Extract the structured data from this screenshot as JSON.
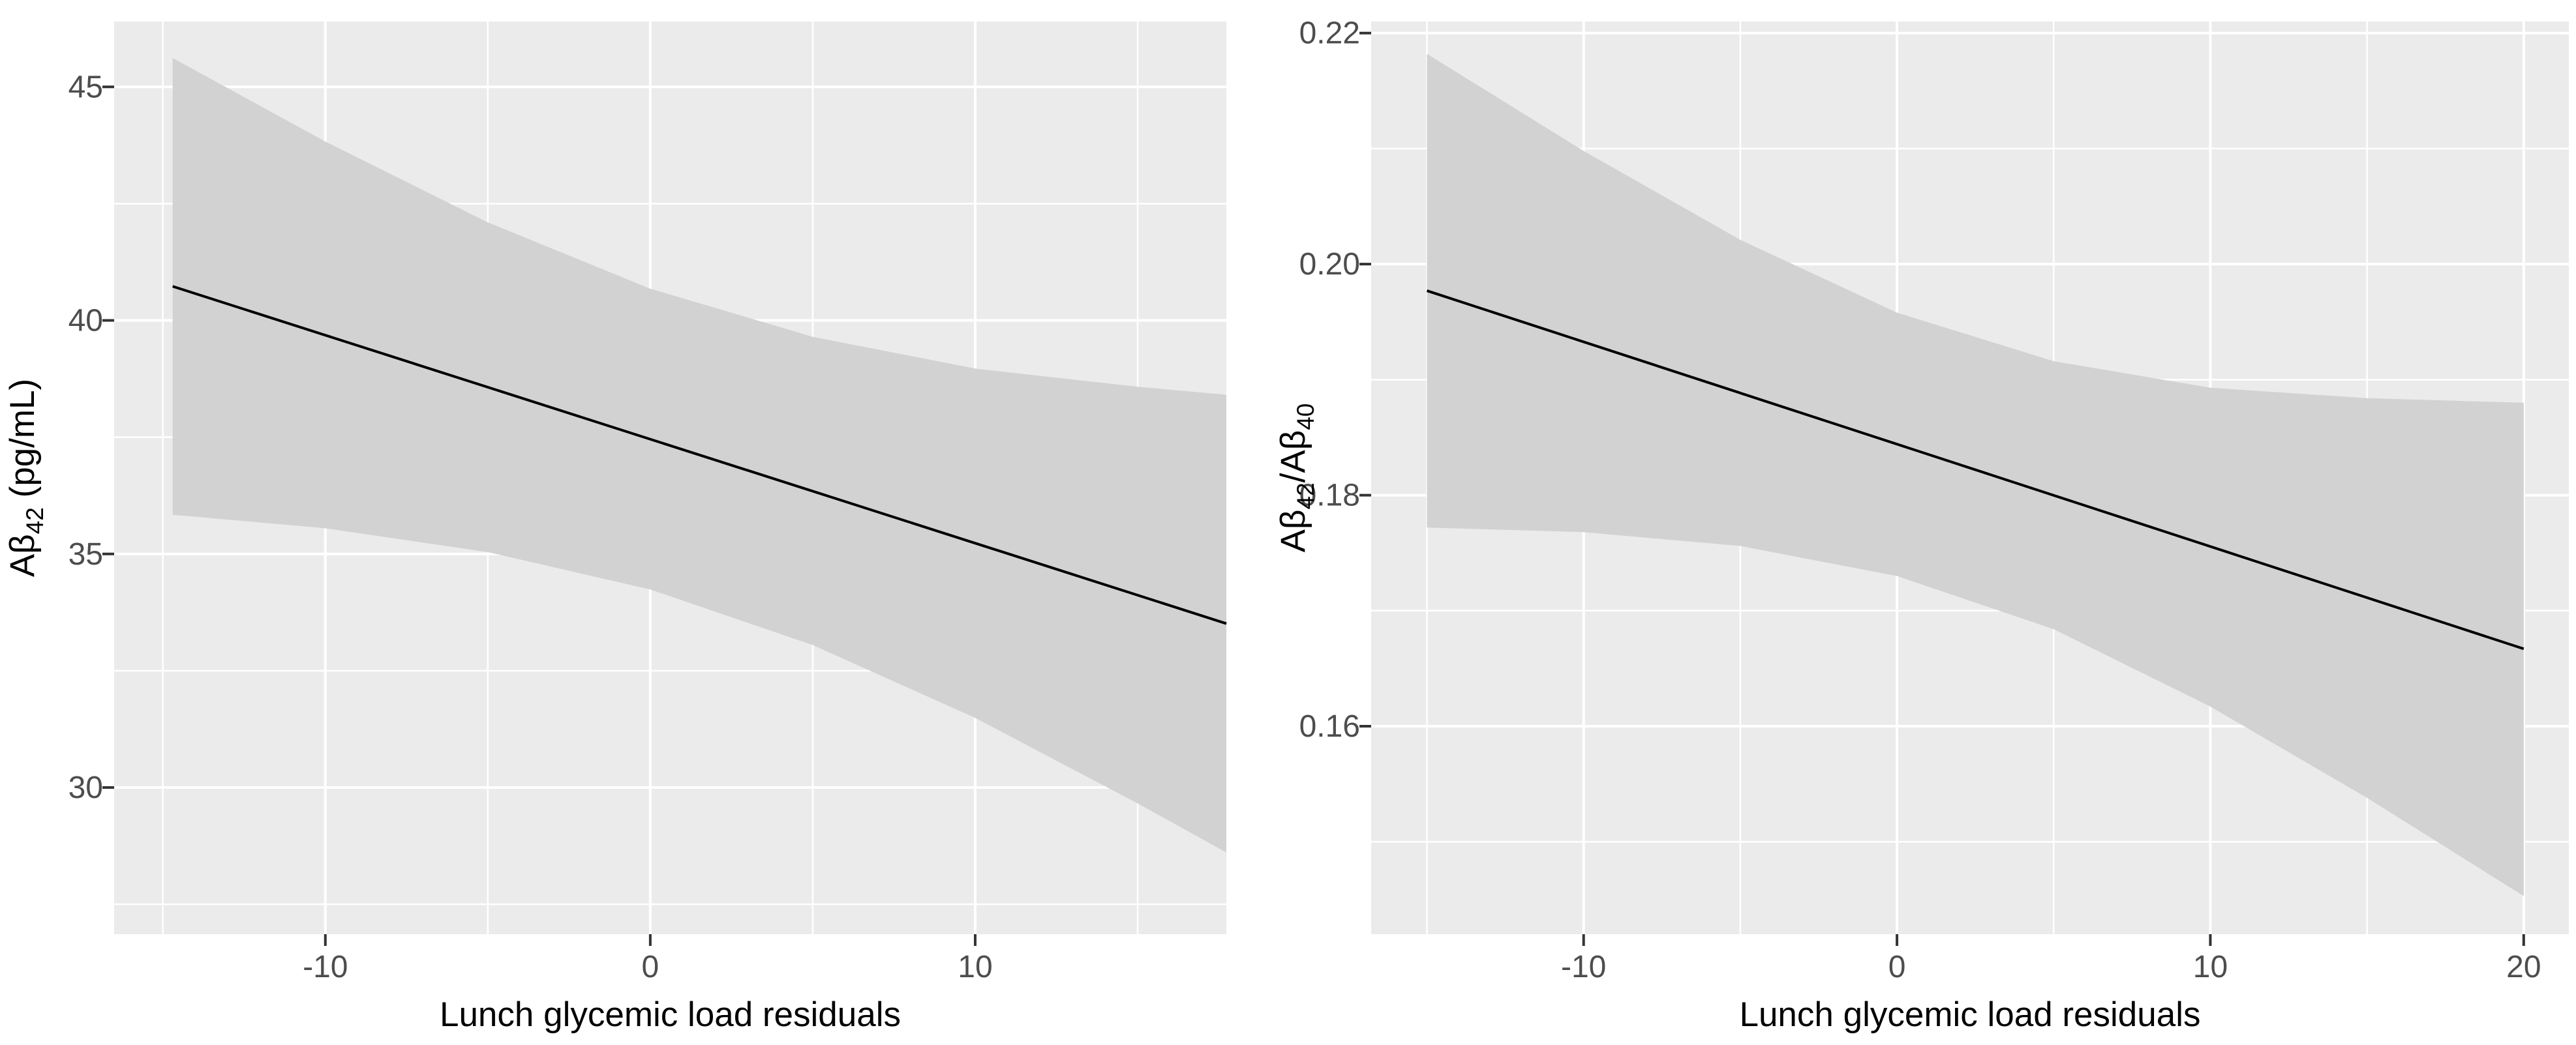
{
  "figure": {
    "description": "Two-panel regression figure: associations of lunch glycemic load residuals with plasma amyloid-beta measures, linear fit with confidence band",
    "colors": {
      "background": "#ffffff",
      "panel": "#ebebeb",
      "band": "#d2d2d2",
      "grid": "#ffffff",
      "fit_line": "#000000",
      "tick_text": "#4d4d4d",
      "axis_title": "#000000",
      "tick_mark": "#333333"
    }
  },
  "chart_data": [
    {
      "type": "line",
      "title": "",
      "xlabel": "Lunch glycemic load residuals",
      "ylabel": "Aβ42 (pg/mL)",
      "ylabel_parts": [
        {
          "t": "Aβ",
          "sub": false
        },
        {
          "t": "42",
          "sub": true
        },
        {
          "t": " (pg/mL)",
          "sub": false
        }
      ],
      "xlim": [
        -16.5,
        17.73
      ],
      "ylim": [
        26.86,
        46.4
      ],
      "grid": true,
      "legend": "none",
      "x_ticks": [
        {
          "value": -10,
          "label": "-10"
        },
        {
          "value": 0,
          "label": "0"
        },
        {
          "value": 10,
          "label": "10"
        }
      ],
      "x_minor": [
        -15,
        -5,
        5,
        15
      ],
      "y_ticks": [
        {
          "value": 30,
          "label": "30"
        },
        {
          "value": 35,
          "label": "35"
        },
        {
          "value": 40,
          "label": "40"
        },
        {
          "value": 45,
          "label": "45"
        }
      ],
      "y_minor": [
        27.5,
        32.5,
        37.5,
        42.5
      ],
      "series": [
        {
          "name": "linear fit",
          "kind": "line",
          "x": [
            -14.7,
            17.73
          ],
          "y": [
            40.73,
            33.51
          ]
        },
        {
          "name": "confidence band",
          "kind": "band",
          "x": [
            -14.7,
            -10,
            -5,
            0,
            5,
            10,
            15,
            17.73
          ],
          "upper": [
            45.62,
            43.83,
            42.1,
            40.68,
            39.65,
            38.97,
            38.58,
            38.41
          ],
          "lower": [
            35.84,
            35.55,
            35.04,
            34.24,
            33.05,
            31.49,
            29.66,
            28.61
          ]
        }
      ]
    },
    {
      "type": "line",
      "title": "",
      "xlabel": "Lunch glycemic load residuals",
      "ylabel": "Aβ42/Aβ40",
      "ylabel_parts": [
        {
          "t": "Aβ",
          "sub": false
        },
        {
          "t": "42",
          "sub": true
        },
        {
          "t": "/Aβ",
          "sub": false
        },
        {
          "t": "40",
          "sub": true
        }
      ],
      "xlim": [
        -16.78,
        21.44
      ],
      "ylim": [
        0.142,
        0.221
      ],
      "grid": true,
      "legend": "none",
      "x_ticks": [
        {
          "value": -10,
          "label": "-10"
        },
        {
          "value": 0,
          "label": "0"
        },
        {
          "value": 10,
          "label": "10"
        },
        {
          "value": 20,
          "label": "20"
        }
      ],
      "x_minor": [
        -15,
        -5,
        5,
        15
      ],
      "y_ticks": [
        {
          "value": 0.16,
          "label": "0.16"
        },
        {
          "value": 0.18,
          "label": "0.18"
        },
        {
          "value": 0.2,
          "label": "0.20"
        },
        {
          "value": 0.22,
          "label": "0.22"
        }
      ],
      "y_minor": [
        0.15,
        0.17,
        0.19,
        0.21
      ],
      "series": [
        {
          "name": "linear fit",
          "kind": "line",
          "x": [
            -15,
            20
          ],
          "y": [
            0.1977,
            0.1667
          ]
        },
        {
          "name": "confidence band",
          "kind": "band",
          "x": [
            -15,
            -10,
            -5,
            0,
            5,
            10,
            15,
            20
          ],
          "upper": [
            0.2182,
            0.2098,
            0.2021,
            0.1958,
            0.1916,
            0.1893,
            0.1884,
            0.188
          ],
          "lower": [
            0.1772,
            0.1768,
            0.1756,
            0.173,
            0.1684,
            0.1617,
            0.1538,
            0.1453
          ]
        }
      ]
    }
  ]
}
